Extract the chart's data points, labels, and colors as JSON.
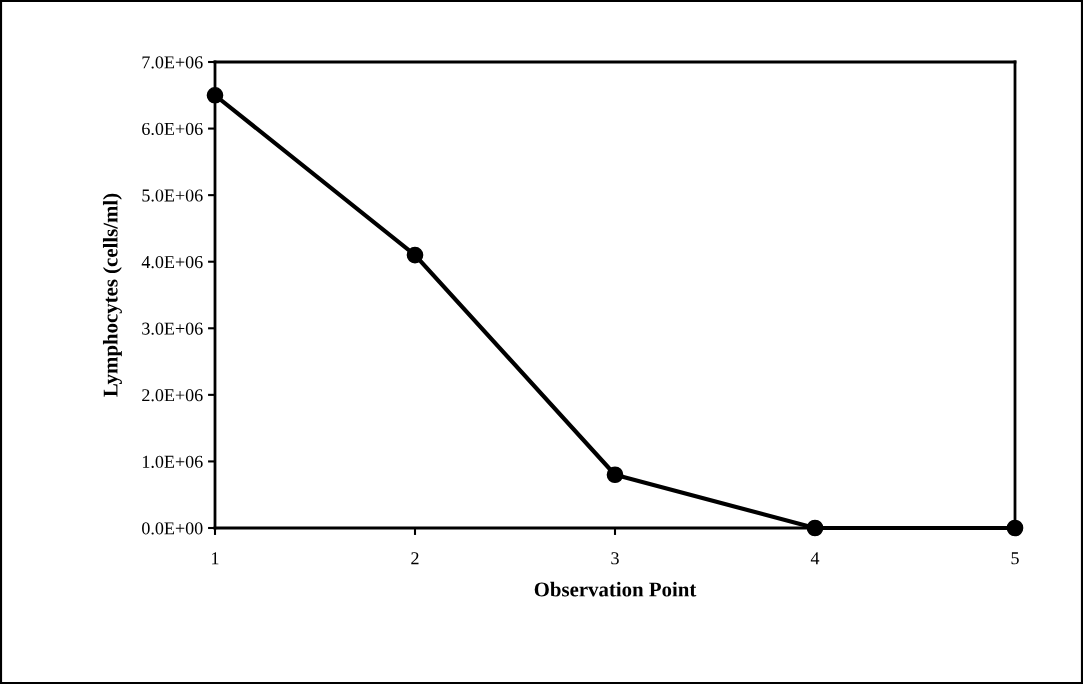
{
  "chart_data": {
    "type": "line",
    "xlabel": "Observation Point",
    "ylabel": "Lymphocytes (cells/ml)",
    "x": [
      1,
      2,
      3,
      4,
      5
    ],
    "series": [
      {
        "color": "#000000",
        "values": [
          6500000,
          4100000,
          800000,
          0,
          0
        ]
      }
    ],
    "xlim": [
      1,
      5
    ],
    "xticks": [
      1,
      2,
      3,
      4,
      5
    ],
    "ylim": [
      0,
      7000000
    ],
    "yticks": [
      {
        "value": 0,
        "label": "0.0E+00"
      },
      {
        "value": 1000000,
        "label": "1.0E+06"
      },
      {
        "value": 2000000,
        "label": "2.0E+06"
      },
      {
        "value": 3000000,
        "label": "3.0E+06"
      },
      {
        "value": 4000000,
        "label": "4.0E+06"
      },
      {
        "value": 5000000,
        "label": "5.0E+06"
      },
      {
        "value": 6000000,
        "label": "6.0E+06"
      },
      {
        "value": 7000000,
        "label": "7.0E+06"
      }
    ],
    "grid": false,
    "marker": "circle",
    "line_style": "solid"
  }
}
